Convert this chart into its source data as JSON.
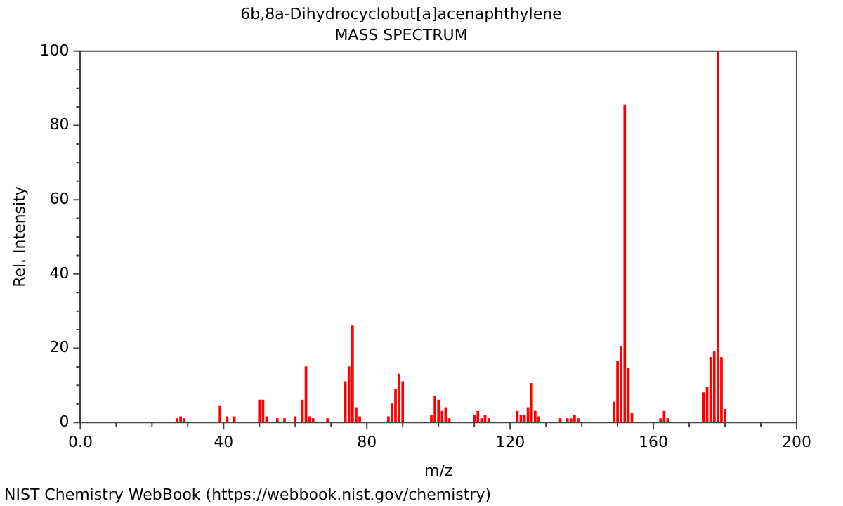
{
  "chart_data": {
    "type": "bar",
    "title": "6b,8a-Dihydrocyclobut[a]acenaphthylene",
    "subtitle": "MASS SPECTRUM",
    "xlabel": "m/z",
    "ylabel": "Rel. Intensity",
    "x": [
      27,
      28,
      29,
      39,
      41,
      43,
      50,
      51,
      52,
      55,
      57,
      60,
      62,
      63,
      64,
      65,
      69,
      74,
      75,
      76,
      77,
      78,
      86,
      87,
      88,
      89,
      90,
      98,
      99,
      100,
      101,
      102,
      103,
      110,
      111,
      112,
      113,
      114,
      122,
      123,
      124,
      125,
      126,
      127,
      128,
      134,
      136,
      137,
      138,
      139,
      149,
      150,
      151,
      152,
      153,
      154,
      162,
      163,
      164,
      174,
      175,
      176,
      177,
      178,
      179,
      180
    ],
    "values": [
      1,
      1.5,
      1,
      4.5,
      1.5,
      1.5,
      6,
      6,
      1.5,
      1,
      1,
      1.5,
      6,
      15,
      1.5,
      1,
      1,
      11,
      15,
      26,
      4,
      1.5,
      1.5,
      5,
      9,
      13,
      11,
      2,
      7,
      6,
      3,
      4,
      1,
      2,
      3,
      1,
      2,
      1,
      3,
      2,
      2,
      4,
      10.5,
      3,
      1.5,
      1,
      1,
      1,
      2,
      1,
      5.5,
      16.5,
      20.5,
      85.5,
      14.5,
      2.5,
      1,
      3,
      1,
      8,
      9.5,
      17.5,
      19,
      100,
      17.5,
      3.5
    ],
    "color": "#ff0000",
    "xlim": [
      0,
      200
    ],
    "xticks": [
      {
        "value": 0,
        "label": "0.0"
      },
      {
        "value": 10,
        "label": null
      },
      {
        "value": 20,
        "label": null
      },
      {
        "value": 30,
        "label": null
      },
      40,
      {
        "value": 50,
        "label": null
      },
      {
        "value": 60,
        "label": null
      },
      {
        "value": 70,
        "label": null
      },
      80,
      {
        "value": 90,
        "label": null
      },
      {
        "value": 100,
        "label": null
      },
      {
        "value": 110,
        "label": null
      },
      120,
      {
        "value": 130,
        "label": null
      },
      {
        "value": 140,
        "label": null
      },
      {
        "value": 150,
        "label": null
      },
      160,
      {
        "value": 170,
        "label": null
      },
      {
        "value": 180,
        "label": null
      },
      {
        "value": 190,
        "label": null
      },
      200
    ],
    "ylim": [
      0,
      100
    ],
    "yticks": [
      0,
      {
        "value": 5,
        "label": null
      },
      {
        "value": 10,
        "label": null
      },
      {
        "value": 15,
        "label": null
      },
      20,
      {
        "value": 25,
        "label": null
      },
      {
        "value": 30,
        "label": null
      },
      {
        "value": 35,
        "label": null
      },
      40,
      {
        "value": 45,
        "label": null
      },
      {
        "value": 50,
        "label": null
      },
      {
        "value": 55,
        "label": null
      },
      60,
      {
        "value": 65,
        "label": null
      },
      {
        "value": 70,
        "label": null
      },
      {
        "value": 75,
        "label": null
      },
      80,
      {
        "value": 85,
        "label": null
      },
      {
        "value": 90,
        "label": null
      },
      {
        "value": 95,
        "label": null
      },
      100
    ],
    "grid": false,
    "legend": false,
    "annotations": [
      "NIST Chemistry WebBook (https://webbook.nist.gov/chemistry)"
    ]
  }
}
